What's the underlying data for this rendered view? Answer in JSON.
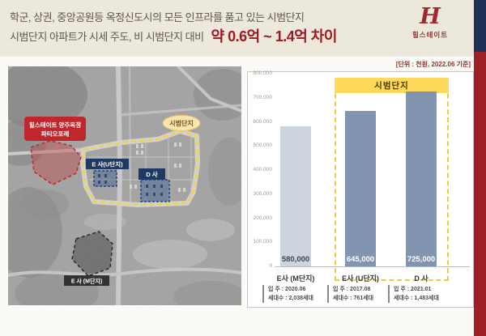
{
  "header": {
    "line1": "학군, 상권, 중앙공원등 옥정신도시의 모든 인프라를 품고 있는 시범단지",
    "line2_prefix": "시범단지 아파트가 시세 주도, 비 시범단지 대비",
    "line2_highlight": "약 0.6억 ~ 1.4억 차이",
    "logo": {
      "monogram": "H",
      "brand": "힐스테이트"
    },
    "colors": {
      "background": "#ece8dc",
      "text": "#5e5747",
      "highlight": "#9c1b22"
    }
  },
  "accent_stripe": {
    "top_color": "#1e3056",
    "bottom_color": "#9e2026"
  },
  "map": {
    "labels": {
      "project": [
        "힐스테이트 양주옥정",
        "파티오포레"
      ],
      "pilot_zone": "시범단지",
      "complex_u": "E 사(U단지)",
      "complex_d": "D 사",
      "complex_m": "E 사 (M단지)"
    },
    "colors": {
      "project_box": "#c0272d",
      "navy_box": "#1f3864",
      "dark_box": "#333333",
      "zone_line": "#f3d43a",
      "zone_label_bg": "#f8e4ac"
    }
  },
  "chart": {
    "unit_note": "[단위 : 천원, 2022.06 기준]",
    "banner": "시범단지"
  },
  "chart_data": {
    "type": "bar",
    "title": "",
    "unit": "천원",
    "categories": [
      "E사 (M단지)",
      "E사 (U단지)",
      "D 사"
    ],
    "values": [
      580000,
      645000,
      725000
    ],
    "value_labels": [
      "580,000",
      "645,000",
      "725,000"
    ],
    "value_label_colors": [
      "#3c4654",
      "#ffffff",
      "#ffffff"
    ],
    "bar_colors": [
      "#ccd4e0",
      "#8295b0",
      "#8295b0"
    ],
    "ylim": [
      0,
      800000
    ],
    "yticks": [
      "800,000",
      "700,000",
      "600,000",
      "500,000",
      "400,000",
      "300,000",
      "200,000",
      "100,000",
      "0"
    ],
    "grid": false,
    "legend": null,
    "highlight_group": {
      "label": "시범단지",
      "indexes": [
        1,
        2
      ]
    },
    "details": [
      {
        "move_in": "입 주 : 2020.06",
        "households": "세대수 : 2,038세대"
      },
      {
        "move_in": "입 주 : 2017.08",
        "households": "세대수 : 761세대"
      },
      {
        "move_in": "입 주 : 2021.01",
        "households": "세대수 : 1,483세대"
      }
    ]
  }
}
